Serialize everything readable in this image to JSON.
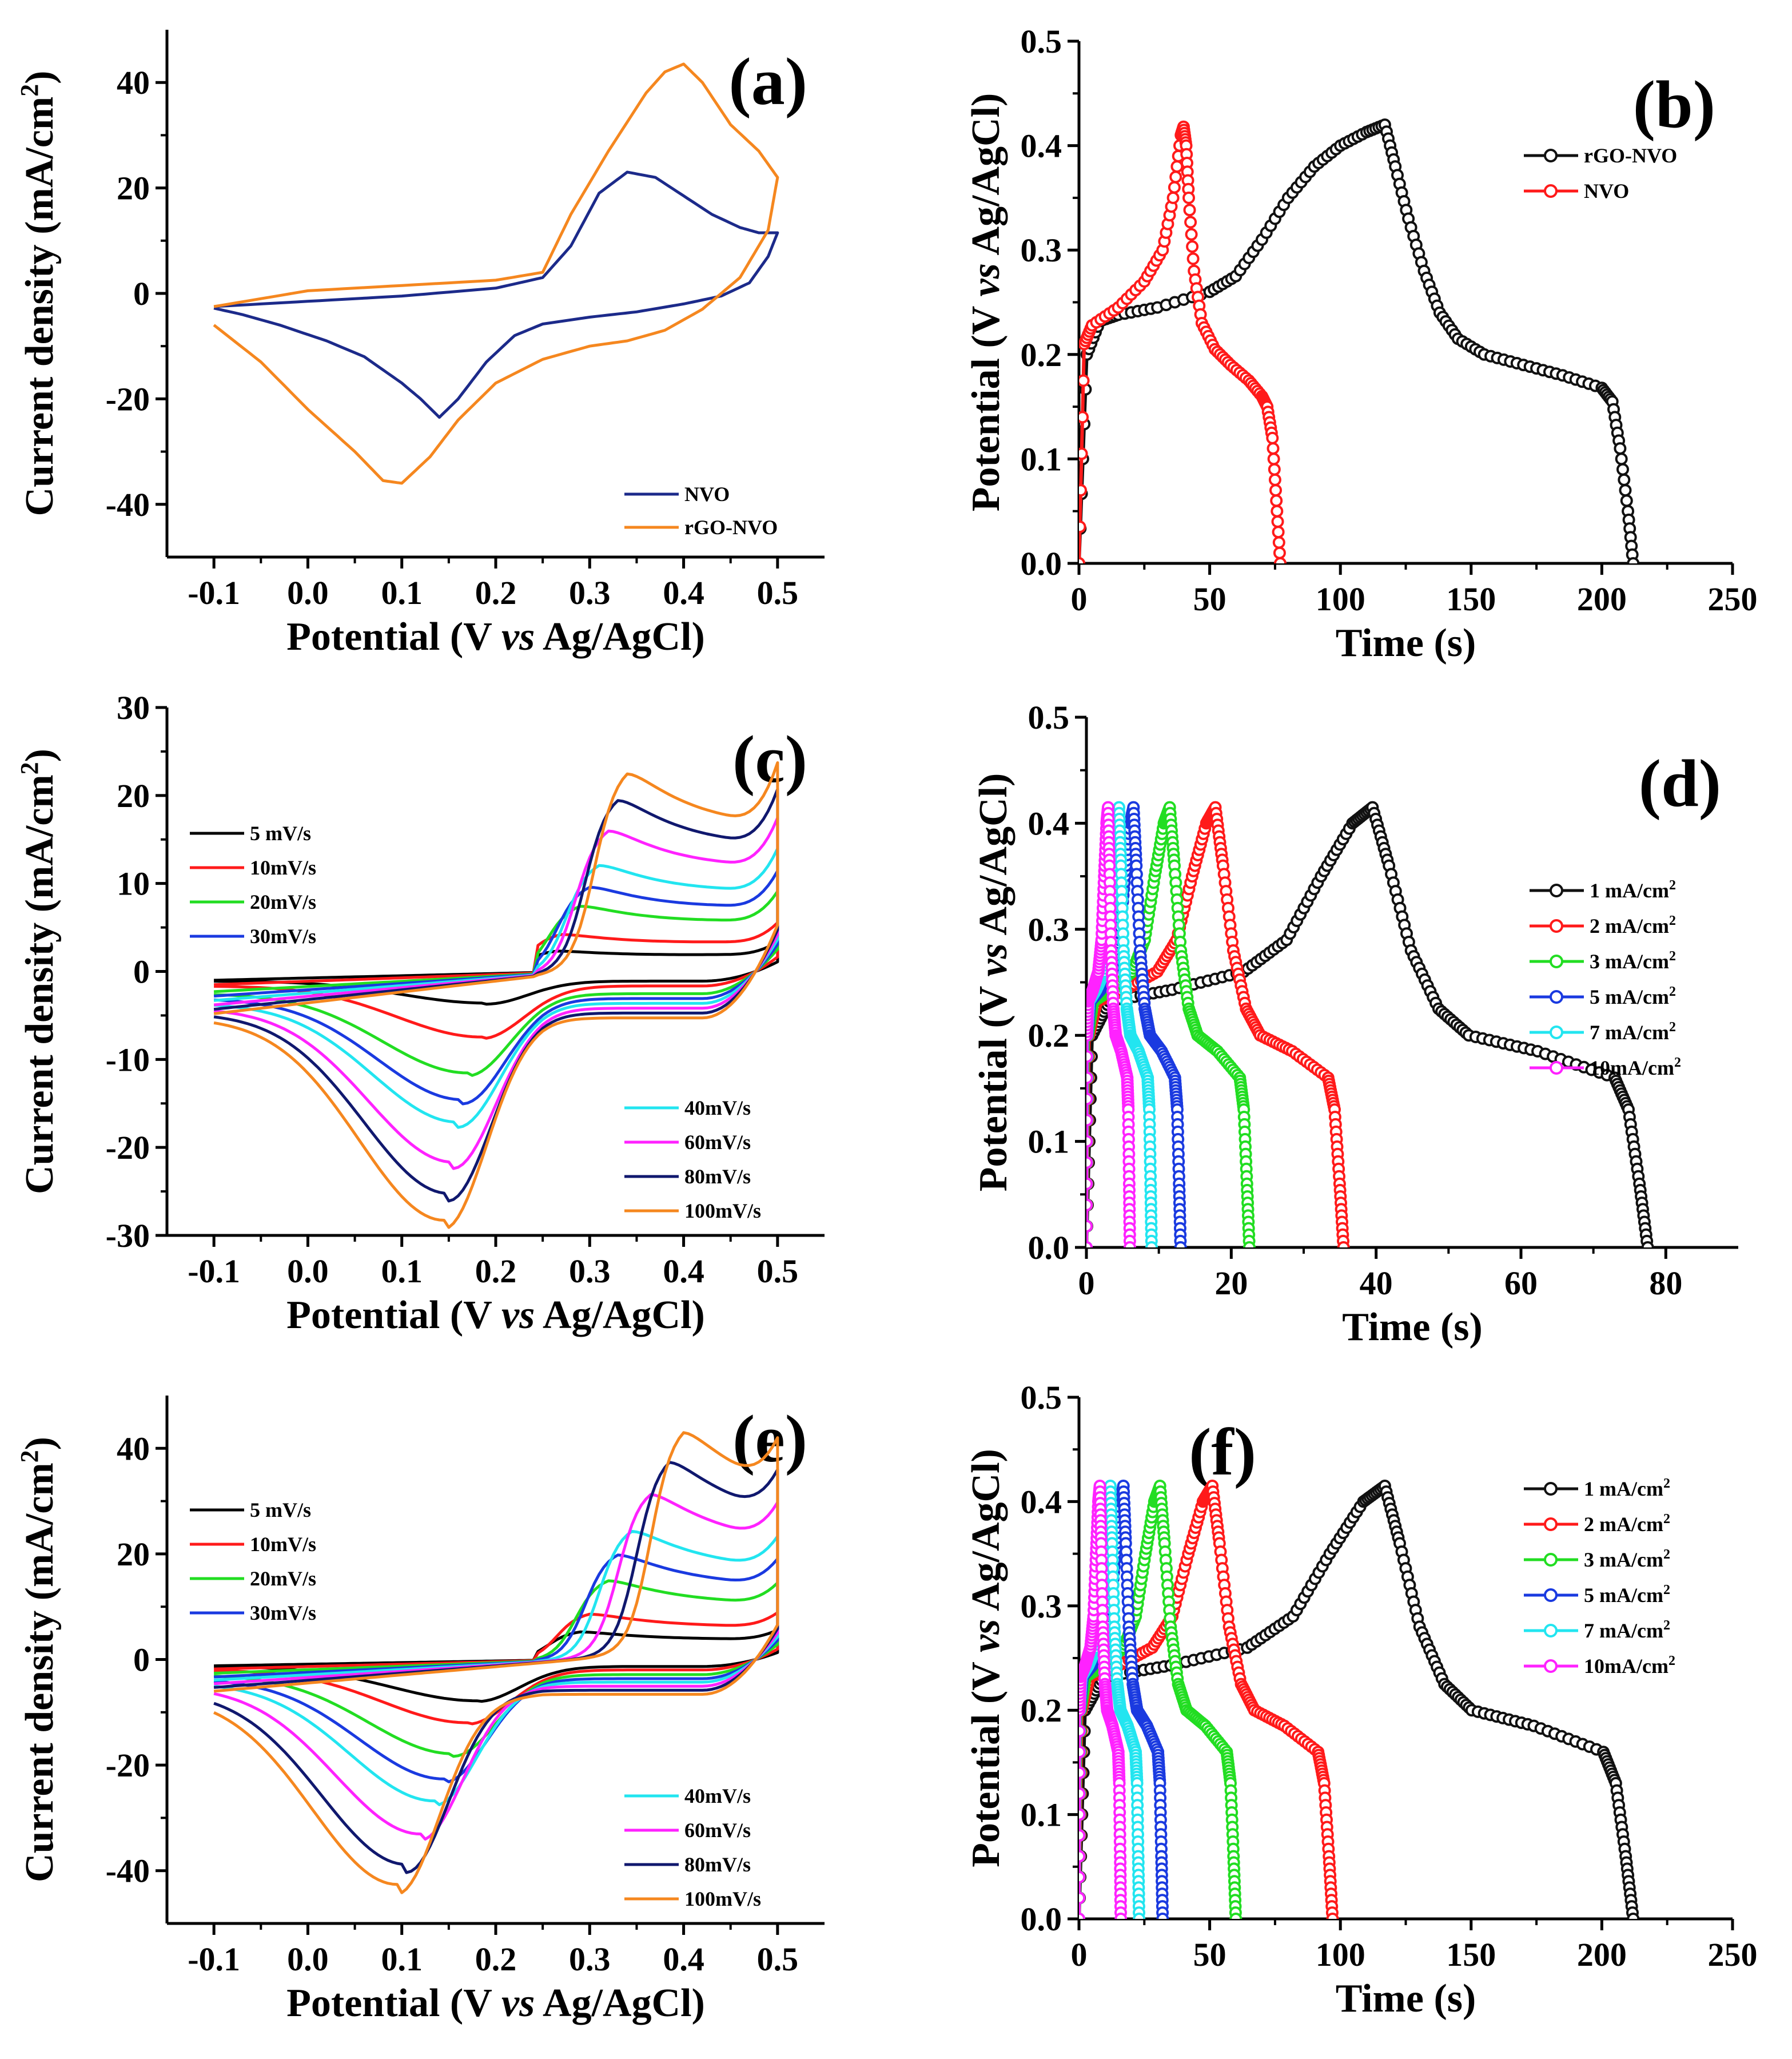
{
  "figure": {
    "panels": [
      "a",
      "b",
      "c",
      "d",
      "e",
      "f"
    ]
  },
  "chart_data": [
    {
      "id": "a",
      "type": "line",
      "label": "(a)",
      "xlabel_parts": [
        "Potential (V ",
        "vs",
        " Ag/AgCl)"
      ],
      "ylabel": "Current density (mA/cm",
      "ylabel_sup": "2",
      "ylabel_close": ")",
      "xlim": [
        -0.15,
        0.55
      ],
      "ylim": [
        -50,
        50
      ],
      "xticks": [
        -0.1,
        0.0,
        0.1,
        0.2,
        0.3,
        0.4,
        0.5
      ],
      "xtick_labels": [
        "-0.1",
        "0.0",
        "0.1",
        "0.2",
        "0.3",
        "0.4",
        "0.5"
      ],
      "yticks": [
        -40,
        -20,
        0,
        20,
        40
      ],
      "ytick_labels": [
        "-40",
        "-20",
        "0",
        "20",
        "40"
      ],
      "legend": {
        "position": "bottom-right",
        "style": "line"
      },
      "series": [
        {
          "name": "NVO",
          "color": "#1c2a8a",
          "x": [
            -0.1,
            0.0,
            0.1,
            0.2,
            0.25,
            0.28,
            0.31,
            0.34,
            0.37,
            0.4,
            0.43,
            0.46,
            0.48,
            0.5,
            0.49,
            0.47,
            0.44,
            0.4,
            0.35,
            0.3,
            0.25,
            0.22,
            0.19,
            0.16,
            0.14,
            0.12,
            0.1,
            0.06,
            0.02,
            -0.03,
            -0.07,
            -0.1
          ],
          "y": [
            -2.5,
            -1.5,
            -0.5,
            1,
            3,
            9,
            19,
            23,
            22,
            18.5,
            15,
            12.5,
            11.5,
            11.5,
            7,
            2,
            -0.5,
            -2,
            -3.5,
            -4.5,
            -5.8,
            -8,
            -13,
            -20,
            -23.5,
            -20,
            -17,
            -12,
            -9,
            -6,
            -4,
            -2.8
          ]
        },
        {
          "name": "rGO-NVO",
          "color": "#f5871f",
          "x": [
            -0.1,
            0.0,
            0.1,
            0.2,
            0.25,
            0.28,
            0.32,
            0.36,
            0.38,
            0.4,
            0.42,
            0.45,
            0.48,
            0.5,
            0.49,
            0.46,
            0.42,
            0.38,
            0.34,
            0.3,
            0.25,
            0.2,
            0.16,
            0.13,
            0.1,
            0.08,
            0.05,
            0.0,
            -0.05,
            -0.1
          ],
          "y": [
            -2.5,
            0.5,
            1.5,
            2.5,
            4,
            15,
            27,
            38,
            42,
            43.5,
            40,
            32,
            27,
            22,
            12,
            3,
            -3,
            -7,
            -9,
            -10,
            -12.5,
            -17,
            -24,
            -31,
            -36,
            -35.5,
            -30,
            -22,
            -13,
            -6
          ]
        }
      ]
    },
    {
      "id": "b",
      "type": "line",
      "label": "(b)",
      "xlabel_parts": [
        "Time (s)"
      ],
      "ylabel": "Potential (V ",
      "ylabel_vs": "vs",
      "ylabel_end": " Ag/AgCl)",
      "xlim": [
        0,
        250
      ],
      "ylim": [
        0,
        0.5
      ],
      "xticks": [
        0,
        50,
        100,
        150,
        200,
        250
      ],
      "xtick_labels": [
        "0",
        "50",
        "100",
        "150",
        "200",
        "250"
      ],
      "yticks": [
        0,
        0.1,
        0.2,
        0.3,
        0.4,
        0.5
      ],
      "ytick_labels": [
        "0.0",
        "0.1",
        "0.2",
        "0.3",
        "0.4",
        "0.5"
      ],
      "legend": {
        "position": "top-right",
        "style": "line-marker"
      },
      "series": [
        {
          "name": "rGO-NVO",
          "color": "#111111",
          "x": [
            0,
            3,
            8,
            15,
            30,
            50,
            60,
            70,
            80,
            90,
            100,
            110,
            117,
            121,
            126,
            132,
            138,
            145,
            155,
            170,
            185,
            200,
            204,
            207,
            210,
            212
          ],
          "y": [
            0,
            0.2,
            0.232,
            0.238,
            0.245,
            0.26,
            0.275,
            0.31,
            0.35,
            0.38,
            0.4,
            0.413,
            0.42,
            0.38,
            0.33,
            0.28,
            0.24,
            0.215,
            0.2,
            0.19,
            0.18,
            0.168,
            0.155,
            0.11,
            0.05,
            0
          ]
        },
        {
          "name": "NVO",
          "color": "#ff1a1a",
          "x": [
            0,
            2,
            5,
            15,
            25,
            32,
            36,
            39,
            40,
            41,
            42,
            44,
            47,
            52,
            58,
            65,
            70,
            72,
            74,
            75.5,
            77
          ],
          "y": [
            0,
            0.21,
            0.228,
            0.245,
            0.27,
            0.3,
            0.35,
            0.41,
            0.418,
            0.4,
            0.35,
            0.28,
            0.23,
            0.205,
            0.19,
            0.175,
            0.16,
            0.15,
            0.12,
            0.06,
            0
          ]
        }
      ]
    },
    {
      "id": "c",
      "type": "line",
      "label": "(c)",
      "xlabel_parts": [
        "Potential (V ",
        "vs",
        " Ag/AgCl)"
      ],
      "ylabel": "Current density (mA/cm",
      "ylabel_sup": "2",
      "ylabel_close": ")",
      "xlim": [
        -0.15,
        0.55
      ],
      "ylim": [
        -30,
        30
      ],
      "xticks": [
        -0.1,
        0.0,
        0.1,
        0.2,
        0.3,
        0.4,
        0.5
      ],
      "xtick_labels": [
        "-0.1",
        "0.0",
        "0.1",
        "0.2",
        "0.3",
        "0.4",
        "0.5"
      ],
      "yticks": [
        -30,
        -20,
        -10,
        0,
        10,
        20,
        30
      ],
      "ytick_labels": [
        "-30",
        "-20",
        "-10",
        "0",
        "10",
        "20",
        "30"
      ],
      "legend": {
        "position": "split-left-and-bottom-right",
        "style": "line",
        "split": 4
      },
      "series": [
        {
          "name": " 5 mV/s",
          "color": "#000000",
          "amp": 1.0,
          "peak_ox": 0.265,
          "peak_red": 0.19,
          "gain": 2.5,
          "drop": 2.5
        },
        {
          "name": "10mV/s",
          "color": "#ff1a1a",
          "amp": 1.5,
          "peak_ox": 0.27,
          "peak_red": 0.185,
          "gain": 4.5,
          "drop": 5.8
        },
        {
          "name": "20mV/s",
          "color": "#22dd22",
          "amp": 2.3,
          "peak_ox": 0.29,
          "peak_red": 0.17,
          "gain": 7.8,
          "drop": 9
        },
        {
          "name": "30mV/s",
          "color": "#1a3ae0",
          "amp": 2.8,
          "peak_ox": 0.3,
          "peak_red": 0.165,
          "gain": 10,
          "drop": 11.5
        },
        {
          "name": "40mV/s",
          "color": "#22e5f0",
          "amp": 3.3,
          "peak_ox": 0.31,
          "peak_red": 0.16,
          "gain": 12.5,
          "drop": 13.5
        },
        {
          "name": "60mV/s",
          "color": "#ff22ff",
          "amp": 3.8,
          "peak_ox": 0.32,
          "peak_red": 0.155,
          "gain": 16.5,
          "drop": 17.5
        },
        {
          "name": "80mV/s",
          "color": "#10186e",
          "amp": 4.3,
          "peak_ox": 0.33,
          "peak_red": 0.15,
          "gain": 20,
          "drop": 20.5
        },
        {
          "name": "100mV/s",
          "color": "#f5871f",
          "amp": 4.8,
          "peak_ox": 0.34,
          "peak_red": 0.145,
          "gain": 23,
          "drop": 23
        }
      ]
    },
    {
      "id": "d",
      "type": "line",
      "label": "(d)",
      "xlabel_parts": [
        "Time (s)"
      ],
      "ylabel": "Potential (V ",
      "ylabel_vs": "vs",
      "ylabel_end": " Ag/AgCl)",
      "xlim": [
        0,
        90
      ],
      "ylim": [
        0,
        0.5
      ],
      "xticks": [
        0,
        20,
        40,
        60,
        80
      ],
      "xtick_labels": [
        "0",
        "20",
        "40",
        "60",
        "80"
      ],
      "yticks": [
        0,
        0.1,
        0.2,
        0.3,
        0.4,
        0.5
      ],
      "ytick_labels": [
        "0.0",
        "0.1",
        "0.2",
        "0.3",
        "0.4",
        "0.5"
      ],
      "legend": {
        "position": "right",
        "style": "line-marker"
      },
      "series": [
        {
          "name": "1 mA/cm",
          "sup": "2",
          "color": "#111111",
          "tpeak": 39.5,
          "tend": 77.5
        },
        {
          "name": "2 mA/cm",
          "sup": "2",
          "color": "#ff1a1a",
          "tpeak": 17.8,
          "tend": 35.5
        },
        {
          "name": "3 mA/cm",
          "sup": "2",
          "color": "#22dd22",
          "tpeak": 11.5,
          "tend": 22.5
        },
        {
          "name": "5 mA/cm",
          "sup": "2",
          "color": "#1a3ae0",
          "tpeak": 6.5,
          "tend": 13
        },
        {
          "name": "7 mA/cm",
          "sup": "2",
          "color": "#22e5f0",
          "tpeak": 4.5,
          "tend": 9
        },
        {
          "name": "10mA/cm",
          "sup": "2",
          "color": "#ff22ff",
          "tpeak": 3,
          "tend": 6
        }
      ]
    },
    {
      "id": "e",
      "type": "line",
      "label": "(e)",
      "xlabel_parts": [
        "Potential (V ",
        "vs",
        " Ag/AgCl)"
      ],
      "ylabel": "Current density (mA/cm",
      "ylabel_sup": "2",
      "ylabel_close": ")",
      "xlim": [
        -0.15,
        0.55
      ],
      "ylim": [
        -50,
        50
      ],
      "xticks": [
        -0.1,
        0.0,
        0.1,
        0.2,
        0.3,
        0.4,
        0.5
      ],
      "xtick_labels": [
        "-0.1",
        "0.0",
        "0.1",
        "0.2",
        "0.3",
        "0.4",
        "0.5"
      ],
      "yticks": [
        -40,
        -20,
        0,
        20,
        40
      ],
      "ytick_labels": [
        "-40",
        "-20",
        "0",
        "20",
        "40"
      ],
      "legend": {
        "position": "split-left-and-bottom-right",
        "style": "line",
        "split": 4
      },
      "series": [
        {
          "name": " 5 mV/s",
          "color": "#000000",
          "amp": 1.2,
          "peak_ox": 0.29,
          "peak_red": 0.18,
          "gain": 5.5,
          "drop": 6.5
        },
        {
          "name": "10mV/s",
          "color": "#ff1a1a",
          "amp": 1.8,
          "peak_ox": 0.3,
          "peak_red": 0.17,
          "gain": 9,
          "drop": 10
        },
        {
          "name": "20mV/s",
          "color": "#22dd22",
          "amp": 2.6,
          "peak_ox": 0.32,
          "peak_red": 0.155,
          "gain": 15.5,
          "drop": 15
        },
        {
          "name": "30mV/s",
          "color": "#1a3ae0",
          "amp": 3.3,
          "peak_ox": 0.33,
          "peak_red": 0.145,
          "gain": 20.5,
          "drop": 19
        },
        {
          "name": "40mV/s",
          "color": "#22e5f0",
          "amp": 3.9,
          "peak_ox": 0.345,
          "peak_red": 0.135,
          "gain": 25,
          "drop": 22.5
        },
        {
          "name": "60mV/s",
          "color": "#ff22ff",
          "amp": 4.6,
          "peak_ox": 0.365,
          "peak_red": 0.12,
          "gain": 32,
          "drop": 28
        },
        {
          "name": "80mV/s",
          "color": "#10186e",
          "amp": 5.3,
          "peak_ox": 0.385,
          "peak_red": 0.105,
          "gain": 38,
          "drop": 33
        },
        {
          "name": "100mV/s",
          "color": "#f5871f",
          "amp": 6.0,
          "peak_ox": 0.4,
          "peak_red": 0.095,
          "gain": 43.5,
          "drop": 36
        }
      ]
    },
    {
      "id": "f",
      "type": "line",
      "label": "(f)",
      "xlabel_parts": [
        "Time (s)"
      ],
      "ylabel": "Potential (V ",
      "ylabel_vs": "vs",
      "ylabel_end": " Ag/AgCl)",
      "xlim": [
        0,
        250
      ],
      "ylim": [
        0,
        0.5
      ],
      "xticks": [
        0,
        50,
        100,
        150,
        200,
        250
      ],
      "xtick_labels": [
        "0",
        "50",
        "100",
        "150",
        "200",
        "250"
      ],
      "yticks": [
        0,
        0.1,
        0.2,
        0.3,
        0.4,
        0.5
      ],
      "ytick_labels": [
        "0.0",
        "0.1",
        "0.2",
        "0.3",
        "0.4",
        "0.5"
      ],
      "legend": {
        "position": "top-right",
        "style": "line-marker"
      },
      "series": [
        {
          "name": "1 mA/cm",
          "sup": "2",
          "color": "#111111",
          "tpeak": 117,
          "tend": 212
        },
        {
          "name": "2 mA/cm",
          "sup": "2",
          "color": "#ff1a1a",
          "tpeak": 51,
          "tend": 97
        },
        {
          "name": "3 mA/cm",
          "sup": "2",
          "color": "#22dd22",
          "tpeak": 31,
          "tend": 60
        },
        {
          "name": "5 mA/cm",
          "sup": "2",
          "color": "#1a3ae0",
          "tpeak": 17,
          "tend": 32
        },
        {
          "name": "7 mA/cm",
          "sup": "2",
          "color": "#22e5f0",
          "tpeak": 12,
          "tend": 23
        },
        {
          "name": "10mA/cm",
          "sup": "2",
          "color": "#ff22ff",
          "tpeak": 8,
          "tend": 16
        }
      ]
    }
  ]
}
